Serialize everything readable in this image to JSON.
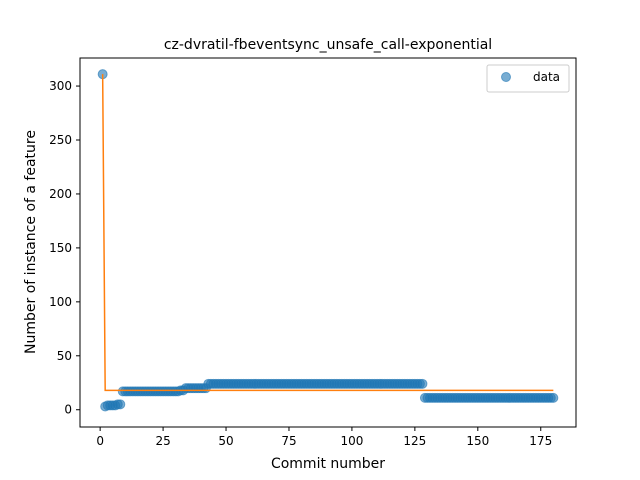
{
  "chart_data": {
    "type": "scatter",
    "title": "cz-dvratil-fbeventsync_unsafe_call-exponential",
    "xlabel": "Commit number",
    "ylabel": "Number of instance of a feature",
    "xlim": [
      -8,
      189
    ],
    "ylim": [
      -16,
      326
    ],
    "xticks": [
      0,
      25,
      50,
      75,
      100,
      125,
      150,
      175
    ],
    "yticks": [
      0,
      50,
      100,
      150,
      200,
      250,
      300
    ],
    "grid": false,
    "legend": {
      "position": "top-right",
      "entries": [
        "data"
      ]
    },
    "series": [
      {
        "name": "data",
        "kind": "scatter",
        "color": "#1f77b4",
        "segments": [
          {
            "x": [
              1
            ],
            "y": 311
          },
          {
            "x": [
              2
            ],
            "y": 3
          },
          {
            "x_from": 3,
            "x_to": 6,
            "y": 4
          },
          {
            "x_from": 7,
            "x_to": 8,
            "y": 5
          },
          {
            "x_from": 9,
            "x_to": 31,
            "y": 17
          },
          {
            "x_from": 32,
            "x_to": 33,
            "y": 18
          },
          {
            "x_from": 34,
            "x_to": 42,
            "y": 20
          },
          {
            "x_from": 43,
            "x_to": 128,
            "y": 24
          },
          {
            "x_from": 129,
            "x_to": 180,
            "y": 11
          }
        ]
      },
      {
        "name": "fit",
        "kind": "line",
        "color": "#ff7f0e",
        "x": [
          1,
          2,
          180
        ],
        "y": [
          311,
          18,
          18
        ]
      }
    ]
  }
}
